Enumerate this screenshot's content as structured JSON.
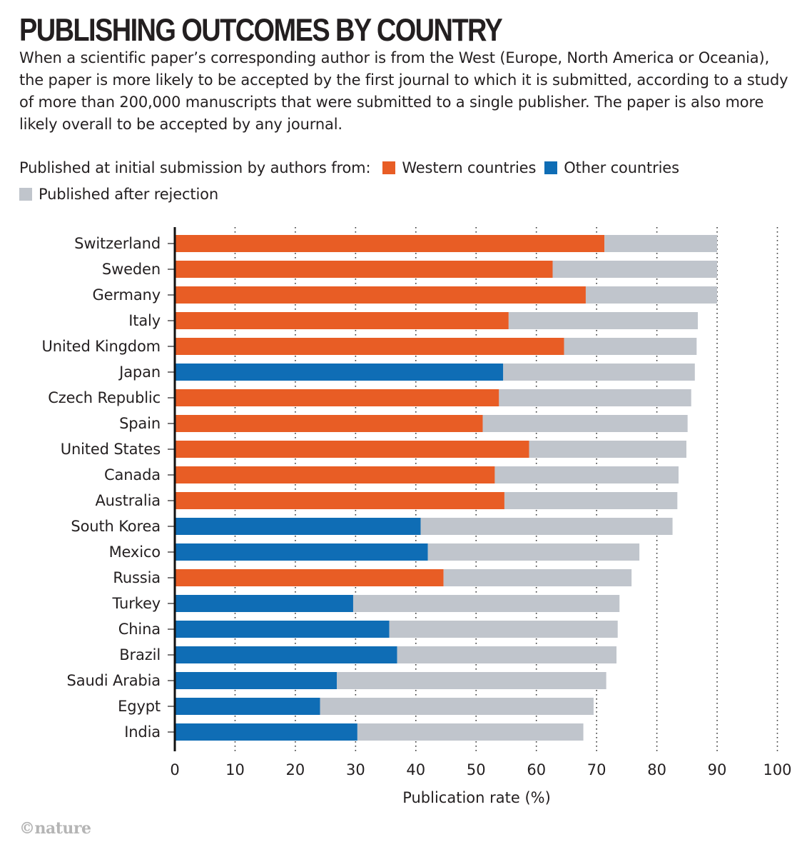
{
  "header": {
    "title": "PUBLISHING OUTCOMES BY COUNTRY",
    "subtitle": "When a scientific paper’s corresponding author is from the West (Europe, North America or Oceania), the paper is more likely to be accepted by the first journal to which it is submitted, according to a study of more than 200,000 manuscripts that were submitted to a single publisher. The paper is also more likely overall to be accepted by any journal."
  },
  "legend": {
    "intro": "Published at initial submission by authors from:",
    "western": "Western countries",
    "other": "Other countries",
    "after": "Published after rejection"
  },
  "colors": {
    "western": "#e85d25",
    "other": "#0f6db5",
    "after": "#c0c5cc"
  },
  "credit": "©nature",
  "chart_data": {
    "type": "bar",
    "orientation": "horizontal",
    "stacked": true,
    "xlabel": "Publication rate (%)",
    "xlim": [
      0,
      100
    ],
    "xticks": [
      0,
      10,
      20,
      30,
      40,
      50,
      60,
      70,
      80,
      90,
      100
    ],
    "grid": "vertical dotted",
    "categories": [
      "Switzerland",
      "Sweden",
      "Germany",
      "Italy",
      "United Kingdom",
      "Japan",
      "Czech Republic",
      "Spain",
      "United States",
      "Canada",
      "Australia",
      "South Korea",
      "Mexico",
      "Russia",
      "Turkey",
      "China",
      "Brazil",
      "Saudi Arabia",
      "Egypt",
      "India"
    ],
    "region": [
      "western",
      "western",
      "western",
      "western",
      "western",
      "other",
      "western",
      "western",
      "western",
      "western",
      "western",
      "other",
      "other",
      "western",
      "other",
      "other",
      "other",
      "other",
      "other",
      "other"
    ],
    "series": [
      {
        "name": "Published at initial submission",
        "values": [
          71.3,
          62.7,
          68.2,
          55.4,
          64.6,
          54.5,
          53.8,
          51.1,
          58.8,
          53.1,
          54.7,
          40.8,
          42.0,
          44.6,
          29.6,
          35.6,
          36.9,
          26.9,
          24.1,
          30.3
        ]
      },
      {
        "name": "Published after rejection",
        "values": [
          18.7,
          27.3,
          21.8,
          31.4,
          22.0,
          31.8,
          31.9,
          34.0,
          26.1,
          30.5,
          28.7,
          41.8,
          35.1,
          31.2,
          44.2,
          37.9,
          36.4,
          44.7,
          45.4,
          37.5
        ]
      }
    ]
  }
}
